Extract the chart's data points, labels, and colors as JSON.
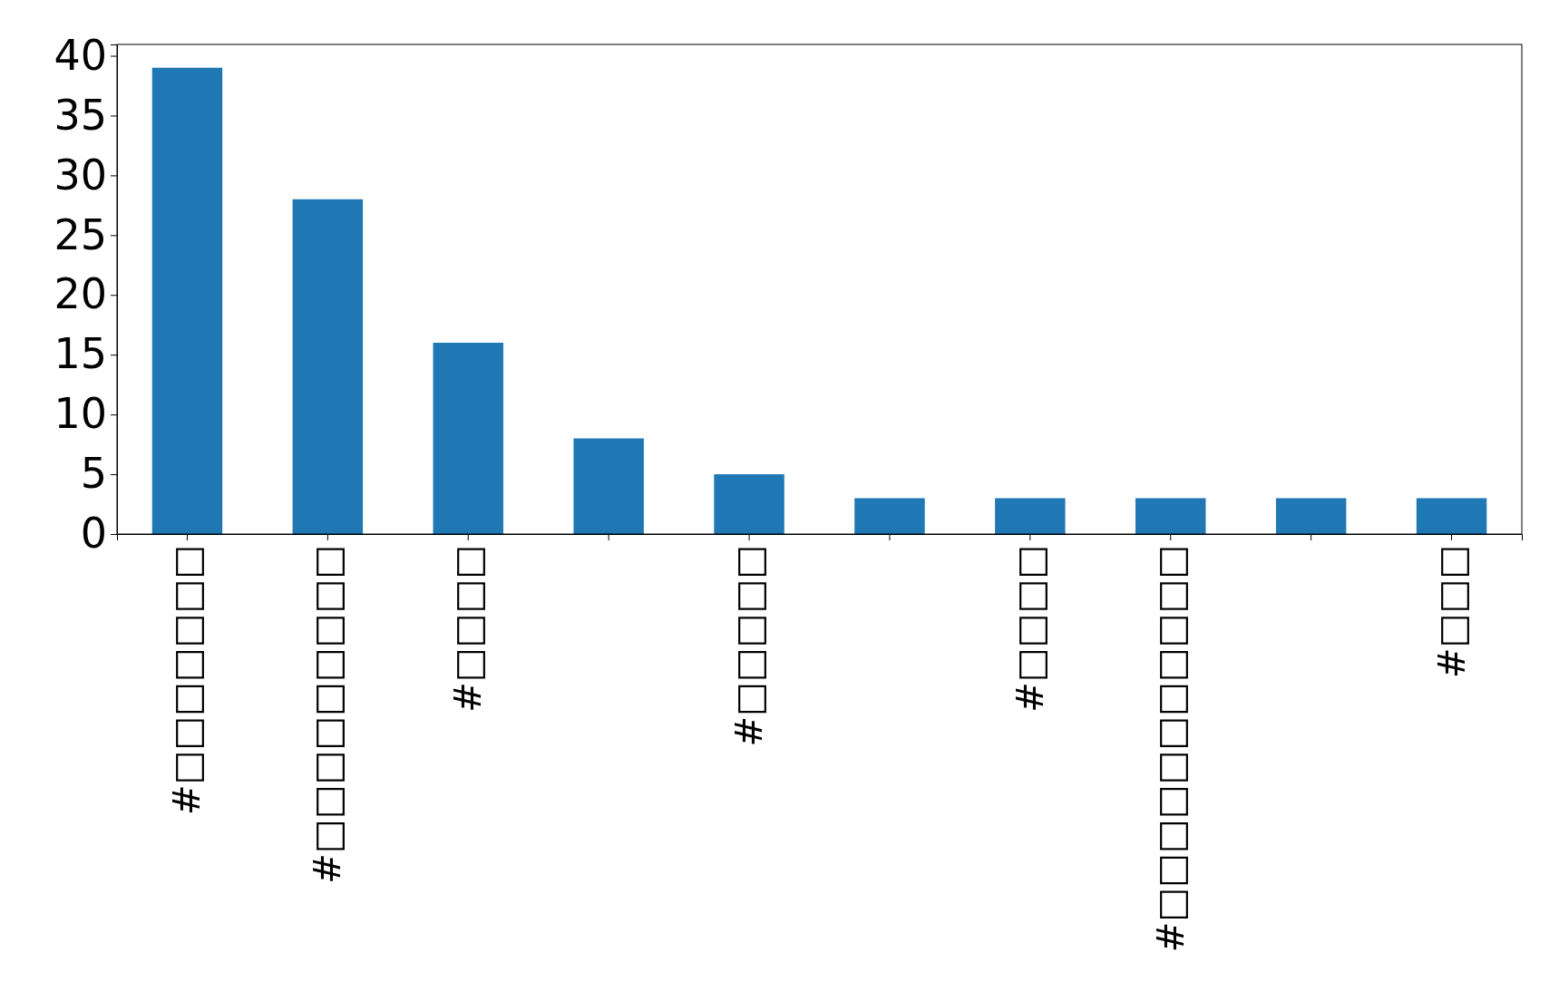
{
  "chart_data": {
    "type": "bar",
    "categories": [
      "#□□□□□□□",
      "#□□□□□□□□□",
      "#□□□□",
      null,
      "#□□□□□",
      null,
      "#□□□□",
      "#□□□□□□□□□□□",
      null,
      "#□□□"
    ],
    "values": [
      39,
      28,
      16,
      8,
      5,
      3,
      3,
      3,
      3,
      3
    ],
    "color": "#1f77b4",
    "ylim": [
      0,
      40.95
    ],
    "yticks": [
      0,
      5,
      10,
      15,
      20,
      25,
      30,
      35,
      40
    ],
    "grid": false
  }
}
